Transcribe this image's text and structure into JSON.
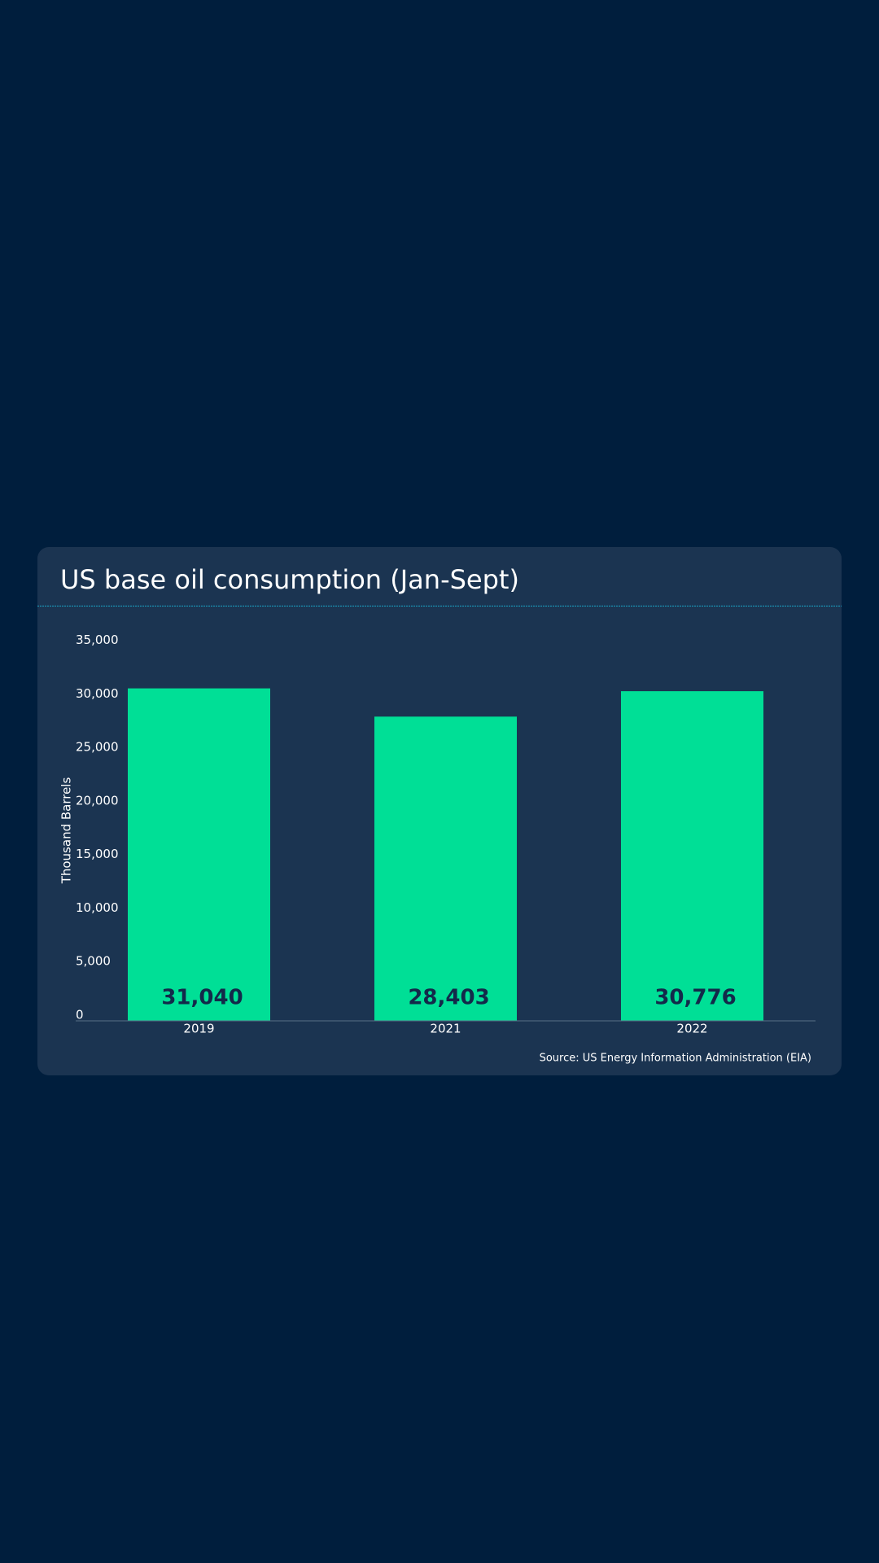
{
  "chart_data": {
    "type": "bar",
    "title": "US base oil consumption (Jan-Sept)",
    "y_axis_label": "Thousand Barrels",
    "source": "Source: US Energy Information Administration (EIA)",
    "categories": [
      "2019",
      "2021",
      "2022"
    ],
    "values": [
      31040,
      28403,
      30776
    ],
    "value_labels": [
      "31,040",
      "28,403",
      "30,776"
    ],
    "color": "#00df96",
    "ylim": [
      0,
      35000
    ],
    "yticks": [
      0,
      {
        "value": 5000,
        "label": "5,000"
      },
      {
        "value": 10000,
        "label": "10,000"
      },
      {
        "value": 15000,
        "label": "15,000"
      },
      {
        "value": 20000,
        "label": "20,000"
      },
      {
        "value": 25000,
        "label": "25,000"
      },
      {
        "value": 30000,
        "label": "30,000"
      },
      {
        "value": 35000,
        "label": "35,000"
      }
    ],
    "grid": false
  }
}
